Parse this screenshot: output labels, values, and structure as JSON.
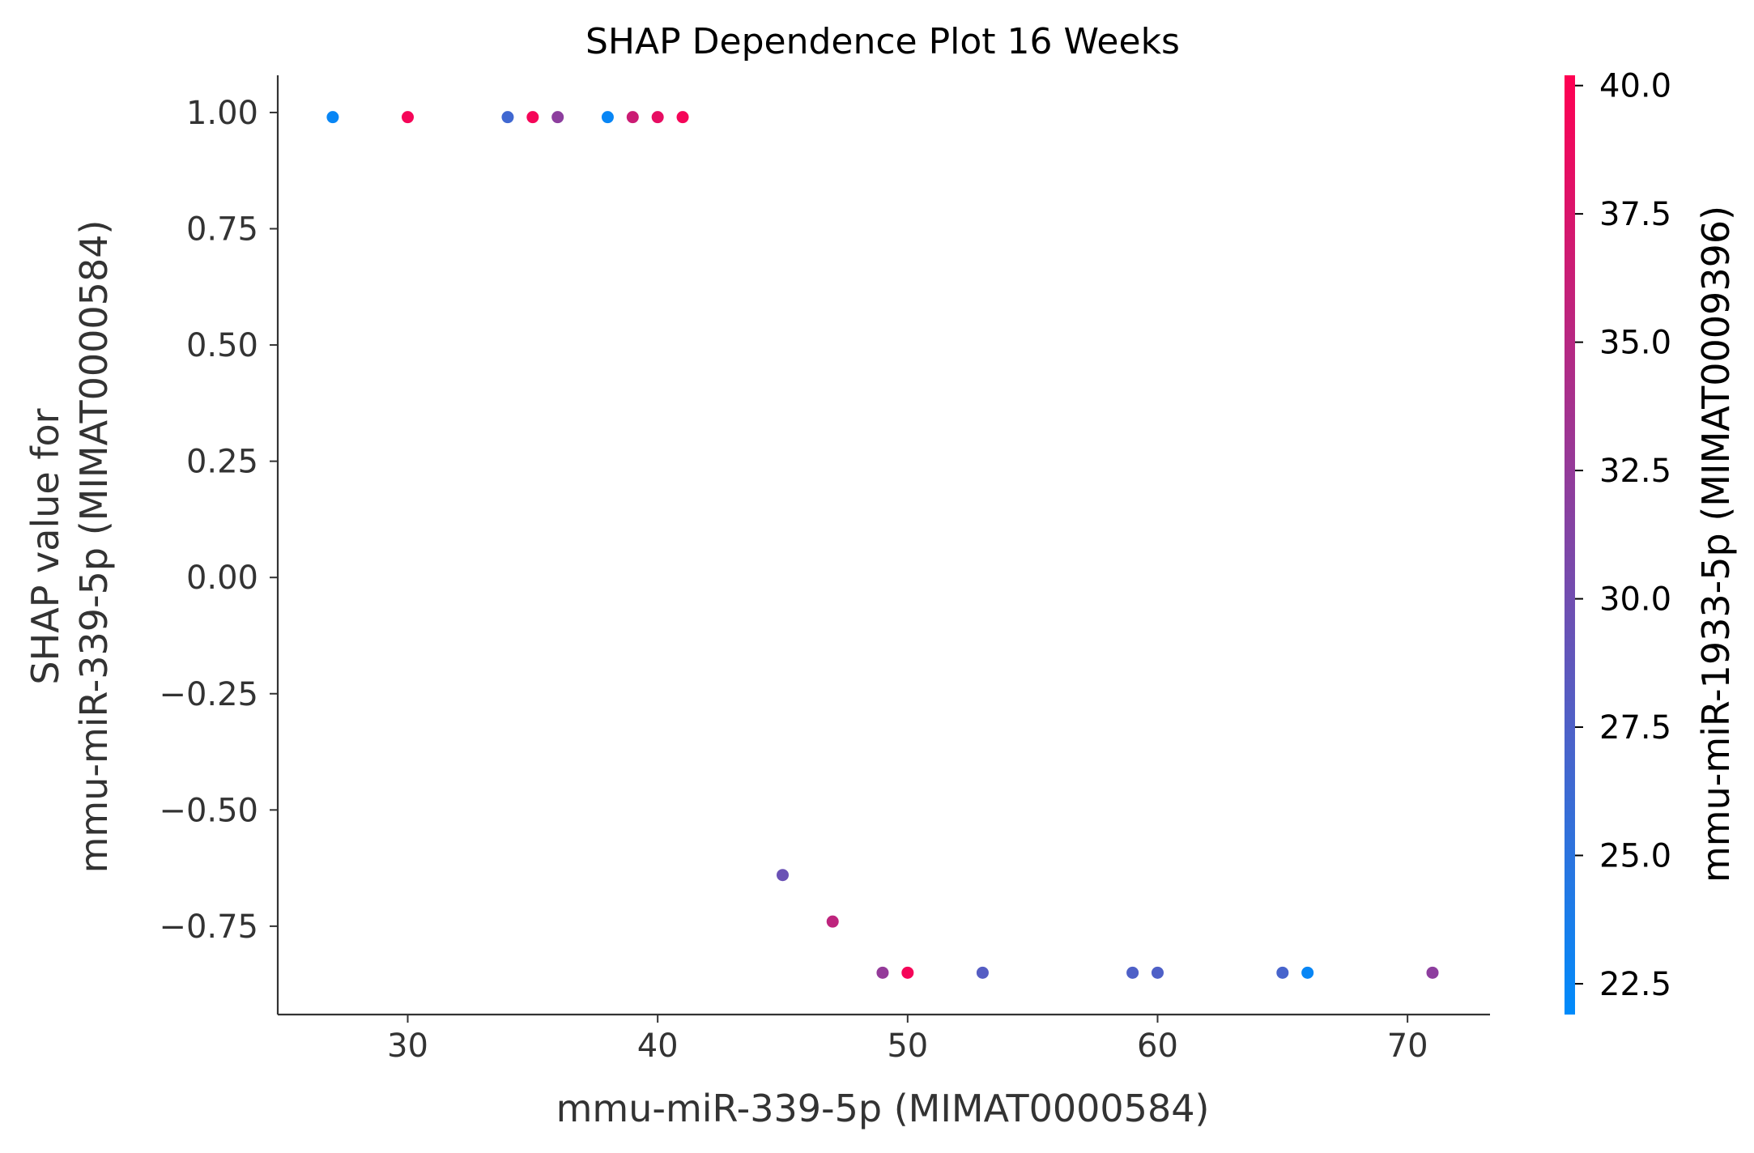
{
  "chart_data": {
    "type": "scatter",
    "title": "SHAP Dependence Plot 16 Weeks",
    "xlabel": "mmu-miR-339-5p (MIMAT0000584)",
    "ylabel_lines": [
      "SHAP value for",
      "mmu-miR-339-5p (MIMAT0000584)"
    ],
    "colorbar_label": "mmu-miR-1933-5p (MIMAT0009396)",
    "xlim": [
      24.8,
      73.3
    ],
    "ylim": [
      -0.94,
      1.08
    ],
    "x_ticks": [
      30,
      40,
      50,
      60,
      70
    ],
    "y_ticks": [
      1.0,
      0.75,
      0.5,
      0.25,
      0.0,
      -0.25,
      -0.5,
      -0.75
    ],
    "y_tick_labels": [
      "1.00",
      "0.75",
      "0.50",
      "0.25",
      "0.00",
      "−0.25",
      "−0.50",
      "−0.75"
    ],
    "colorbar_range": [
      21.9,
      40.2
    ],
    "colorbar_ticks": [
      40.0,
      37.5,
      35.0,
      32.5,
      30.0,
      27.5,
      25.0,
      22.5
    ],
    "colorbar_tick_labels": [
      "40.0",
      "37.5",
      "35.0",
      "32.5",
      "30.0",
      "27.5",
      "25.0",
      "22.5"
    ],
    "colormap": [
      "#008bfb",
      "#ff0052"
    ],
    "grid": false,
    "points": [
      {
        "x": 27,
        "y": 0.99,
        "c": 22.5
      },
      {
        "x": 30,
        "y": 0.99,
        "c": 39.5
      },
      {
        "x": 34,
        "y": 0.99,
        "c": 26.5
      },
      {
        "x": 35,
        "y": 0.99,
        "c": 39.5
      },
      {
        "x": 36,
        "y": 0.99,
        "c": 32.0
      },
      {
        "x": 38,
        "y": 0.99,
        "c": 22.5
      },
      {
        "x": 39,
        "y": 0.99,
        "c": 36.5
      },
      {
        "x": 40,
        "y": 0.99,
        "c": 38.5
      },
      {
        "x": 41,
        "y": 0.99,
        "c": 39.5
      },
      {
        "x": 45,
        "y": -0.64,
        "c": 29.5
      },
      {
        "x": 47,
        "y": -0.74,
        "c": 35.5
      },
      {
        "x": 49,
        "y": -0.85,
        "c": 32.5
      },
      {
        "x": 50,
        "y": -0.85,
        "c": 39.5
      },
      {
        "x": 53,
        "y": -0.85,
        "c": 28.0
      },
      {
        "x": 59,
        "y": -0.85,
        "c": 27.5
      },
      {
        "x": 60,
        "y": -0.85,
        "c": 27.5
      },
      {
        "x": 65,
        "y": -0.85,
        "c": 27.0
      },
      {
        "x": 66,
        "y": -0.85,
        "c": 22.5
      },
      {
        "x": 71,
        "y": -0.85,
        "c": 32.0
      }
    ]
  }
}
